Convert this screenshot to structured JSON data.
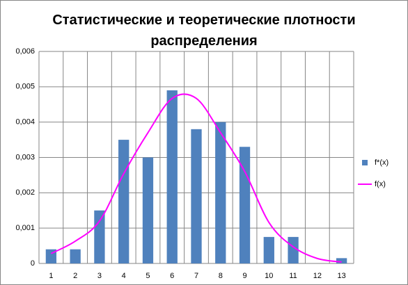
{
  "chart_data": {
    "type": "bar_line",
    "title": "Статистические и теоретические плотности распределения",
    "categories": [
      "1",
      "2",
      "3",
      "4",
      "5",
      "6",
      "7",
      "8",
      "9",
      "10",
      "11",
      "12",
      "13"
    ],
    "series": [
      {
        "name": "f*(x)",
        "type": "bar",
        "color": "#4f81bd",
        "values": [
          0.0004,
          0.0004,
          0.0015,
          0.0035,
          0.003,
          0.0049,
          0.0038,
          0.004,
          0.0033,
          0.00075,
          0.00075,
          0,
          0.00015
        ]
      },
      {
        "name": "f(x)",
        "type": "line",
        "color": "#ff00ff",
        "values": [
          0.00028,
          0.00063,
          0.0012,
          0.00254,
          0.0037,
          0.00467,
          0.00467,
          0.0037,
          0.0026,
          0.00116,
          0.00047,
          0.00014,
          4e-05
        ]
      }
    ],
    "ylim": [
      0,
      0.006
    ],
    "yticks": [
      0,
      {
        "value": 0.001,
        "label": "0,001"
      },
      {
        "value": 0.002,
        "label": "0,002"
      },
      {
        "value": 0.003,
        "label": "0,003"
      },
      {
        "value": 0.004,
        "label": "0,004"
      },
      {
        "value": 0.005,
        "label": "0,005"
      },
      {
        "value": 0.006,
        "label": "0,006"
      }
    ],
    "grid": true,
    "legend": "right"
  }
}
